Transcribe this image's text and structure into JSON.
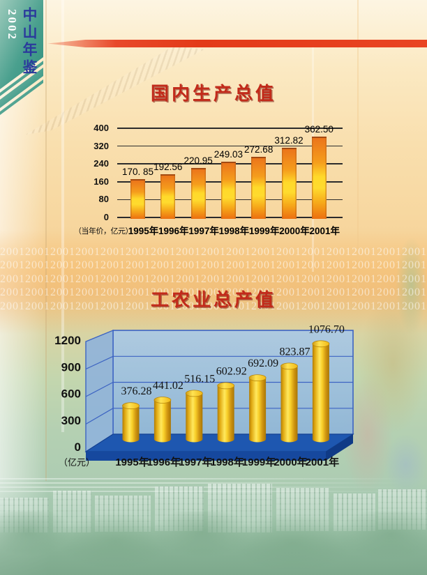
{
  "page": {
    "edition_year": "2002",
    "yearbook_title": "中山年鉴",
    "watermark_text": "2001"
  },
  "colors": {
    "ribbon_teal_dark": "#2f8f7e",
    "ribbon_teal_light": "#93c6b6",
    "title_red": "#c22a1a",
    "rule_red": "#e33a18",
    "bar_orange": "#ec7a1c",
    "bar_yellow": "#ffd92a",
    "cylinder_gold": "#f5c518",
    "wall_blue": "#9fc2e2",
    "floor_blue": "#1e57b0"
  },
  "chart_data": [
    {
      "type": "bar",
      "title": "国内生产总值",
      "unit_note": "（当年价，亿元）",
      "categories": [
        "1995年",
        "1996年",
        "1997年",
        "1998年",
        "1999年",
        "2000年",
        "2001年"
      ],
      "values": [
        170.85,
        192.56,
        220.95,
        249.03,
        272.68,
        312.82,
        362.5
      ],
      "labels": [
        "170. 85",
        "192.56",
        "220.95",
        "249.03",
        "272.68",
        "312.82",
        "362.50"
      ],
      "y_ticks": [
        0,
        80,
        160,
        240,
        320,
        400
      ],
      "ylim": [
        0,
        400
      ],
      "grid": true,
      "legend": "none"
    },
    {
      "type": "bar",
      "style": "3d-cylinder",
      "title": "工农业总产值",
      "unit_note": "（亿元）",
      "categories": [
        "1995年",
        "1996年",
        "1997年",
        "1998年",
        "1999年",
        "2000年",
        "2001年"
      ],
      "values": [
        376.28,
        441.02,
        516.15,
        602.92,
        692.09,
        823.87,
        1076.7
      ],
      "labels": [
        "376.28",
        "441.02",
        "516.15",
        "602.92",
        "692.09",
        "823.87",
        "1076.70"
      ],
      "y_ticks": [
        0,
        300,
        600,
        900,
        1200
      ],
      "ylim": [
        0,
        1200
      ],
      "grid": true,
      "legend": "none"
    }
  ]
}
